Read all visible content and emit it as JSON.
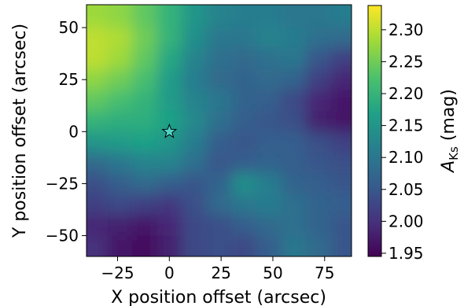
{
  "chart_data": {
    "type": "heatmap",
    "title": "",
    "xlabel": "X position offset (arcsec)",
    "ylabel": "Y position offset (arcsec)",
    "xlim": [
      -40,
      88
    ],
    "ylim": [
      -60,
      61
    ],
    "x_ticks": [
      -25,
      0,
      25,
      50,
      75
    ],
    "y_ticks": [
      50,
      25,
      0,
      -25,
      -50
    ],
    "x_tick_labels": [
      "−25",
      "0",
      "25",
      "50",
      "75"
    ],
    "y_tick_labels": [
      "50",
      "25",
      "0",
      "−25",
      "−50"
    ],
    "colorscale": "viridis",
    "colorbar": {
      "label_main": "A",
      "label_sub": "Ks",
      "label_unit": " (mag)",
      "min": 1.945,
      "max": 2.338,
      "ticks": [
        2.3,
        2.25,
        2.2,
        2.15,
        2.1,
        2.05,
        2.0,
        1.95
      ],
      "tick_labels": [
        "2.30",
        "2.25",
        "2.20",
        "2.15",
        "2.10",
        "2.05",
        "2.00",
        "1.95"
      ]
    },
    "marker": {
      "shape": "star",
      "x": 0,
      "y": 0,
      "color": "#4fd1c5"
    },
    "x_samples": [
      -36,
      -24,
      -12,
      0,
      12,
      24,
      36,
      48,
      60,
      72,
      84
    ],
    "y_samples": [
      55,
      45,
      35,
      25,
      15,
      5,
      -5,
      -15,
      -25,
      -35,
      -45,
      -55
    ],
    "values": [
      [
        2.28,
        2.27,
        2.24,
        2.2,
        2.15,
        2.12,
        2.11,
        2.11,
        2.1,
        2.1,
        2.11
      ],
      [
        2.3,
        2.29,
        2.25,
        2.2,
        2.14,
        2.1,
        2.1,
        2.12,
        2.11,
        2.09,
        2.08
      ],
      [
        2.3,
        2.28,
        2.24,
        2.18,
        2.12,
        2.09,
        2.08,
        2.09,
        2.1,
        2.05,
        2.02
      ],
      [
        2.27,
        2.25,
        2.22,
        2.16,
        2.11,
        2.08,
        2.07,
        2.08,
        2.07,
        2.02,
        1.99
      ],
      [
        2.24,
        2.22,
        2.2,
        2.16,
        2.12,
        2.1,
        2.07,
        2.06,
        2.03,
        1.99,
        1.97
      ],
      [
        2.2,
        2.19,
        2.19,
        2.17,
        2.13,
        2.09,
        2.06,
        2.05,
        2.04,
        1.98,
        1.97
      ],
      [
        2.15,
        2.16,
        2.17,
        2.15,
        2.11,
        2.06,
        2.05,
        2.06,
        2.06,
        2.04,
        2.02
      ],
      [
        2.08,
        2.1,
        2.12,
        2.12,
        2.09,
        2.05,
        2.06,
        2.07,
        2.06,
        2.05,
        2.04
      ],
      [
        2.04,
        2.06,
        2.08,
        2.06,
        2.05,
        2.07,
        2.14,
        2.11,
        2.07,
        2.06,
        2.05
      ],
      [
        2.02,
        2.03,
        2.02,
        2.01,
        2.04,
        2.08,
        2.1,
        2.11,
        2.09,
        2.07,
        2.06
      ],
      [
        1.99,
        1.98,
        1.97,
        1.99,
        2.03,
        2.04,
        2.06,
        2.08,
        2.09,
        2.07,
        2.05
      ],
      [
        2.0,
        1.97,
        1.96,
        1.98,
        2.03,
        2.04,
        2.03,
        2.06,
        2.1,
        2.08,
        2.05
      ]
    ]
  }
}
